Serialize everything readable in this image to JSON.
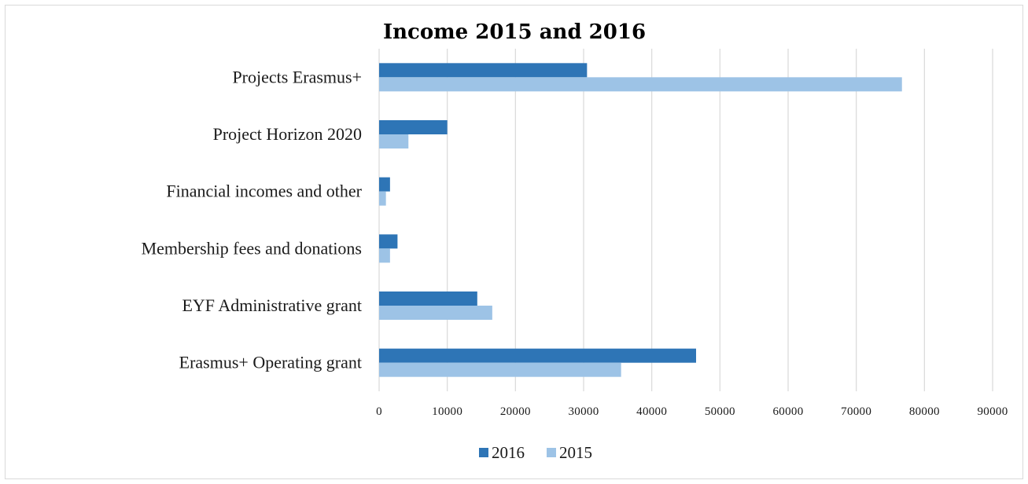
{
  "chart_data": {
    "type": "bar",
    "orientation": "horizontal",
    "title": "Income 2015 and 2016",
    "categories": [
      "Projects Erasmus+",
      "Project Horizon 2020",
      "Financial incomes and other",
      "Membership fees and donations",
      "EYF Administrative grant",
      "Erasmus+ Operating grant"
    ],
    "series": [
      {
        "name": "2016",
        "color": "#2e75b6",
        "values": [
          30500,
          10000,
          1600,
          2700,
          14400,
          46500
        ]
      },
      {
        "name": "2015",
        "color": "#9dc3e6",
        "values": [
          76700,
          4300,
          1000,
          1600,
          16600,
          35500
        ]
      }
    ],
    "xlim": [
      0,
      90000
    ],
    "xticks": [
      "0",
      "10000",
      "20000",
      "30000",
      "40000",
      "50000",
      "60000",
      "70000",
      "80000",
      "90000"
    ],
    "xlabel": "",
    "ylabel": "",
    "grid": "vertical",
    "legend_position": "bottom",
    "gridline_color": "#d9d9d9"
  }
}
